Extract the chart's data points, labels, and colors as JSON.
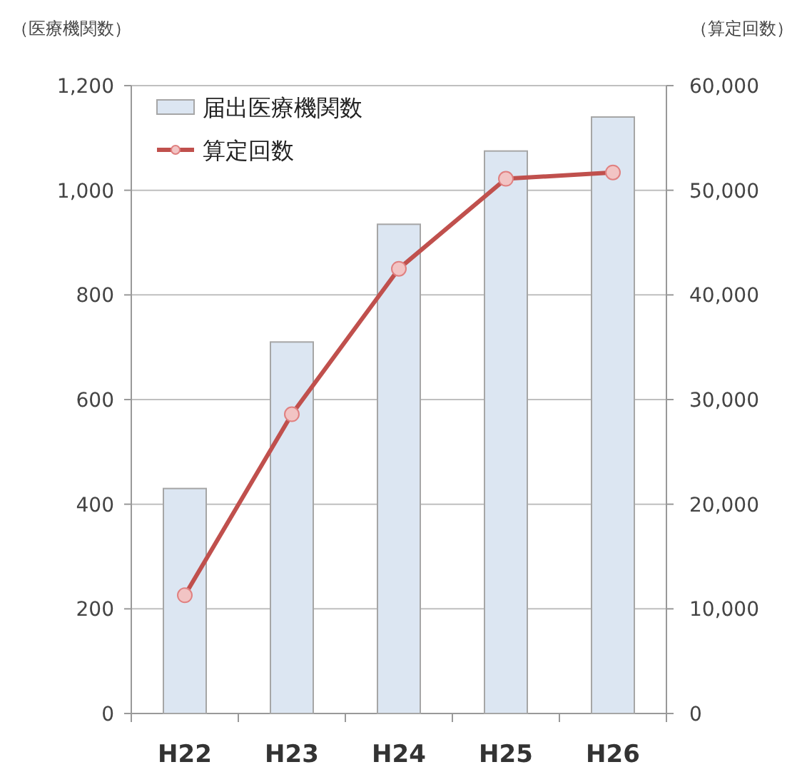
{
  "chart_data": {
    "type": "bar",
    "ylabel": "（医療機関数）",
    "y2label": "（算定回数）",
    "categories": [
      "H22",
      "H23",
      "H24",
      "H25",
      "H26"
    ],
    "series": [
      {
        "name": "届出医療機関数",
        "color": "#dce6f2",
        "values": [
          430,
          710,
          935,
          1075,
          1140
        ]
      },
      {
        "name": "算定回数",
        "type": "line",
        "axis": "y2",
        "color": "#c0504d",
        "marker": "circle",
        "values": [
          11300,
          28600,
          42500,
          51100,
          51700
        ]
      }
    ],
    "ylim": [
      0,
      1200
    ],
    "yticks": [
      {
        "value": 0,
        "label": "0"
      },
      {
        "value": 200,
        "label": "200"
      },
      {
        "value": 400,
        "label": "400"
      },
      {
        "value": 600,
        "label": "600"
      },
      {
        "value": 800,
        "label": "800"
      },
      {
        "value": 1000,
        "label": "1,000"
      },
      {
        "value": 1200,
        "label": "1,200"
      }
    ],
    "y2lim": [
      0,
      60000
    ],
    "y2ticks": [
      {
        "value": 0,
        "label": "0"
      },
      {
        "value": 10000,
        "label": "10,000"
      },
      {
        "value": 20000,
        "label": "20,000"
      },
      {
        "value": 30000,
        "label": "30,000"
      },
      {
        "value": 40000,
        "label": "40,000"
      },
      {
        "value": 50000,
        "label": "50,000"
      },
      {
        "value": 60000,
        "label": "60,000"
      }
    ],
    "grid": "y",
    "legend": "top left"
  }
}
